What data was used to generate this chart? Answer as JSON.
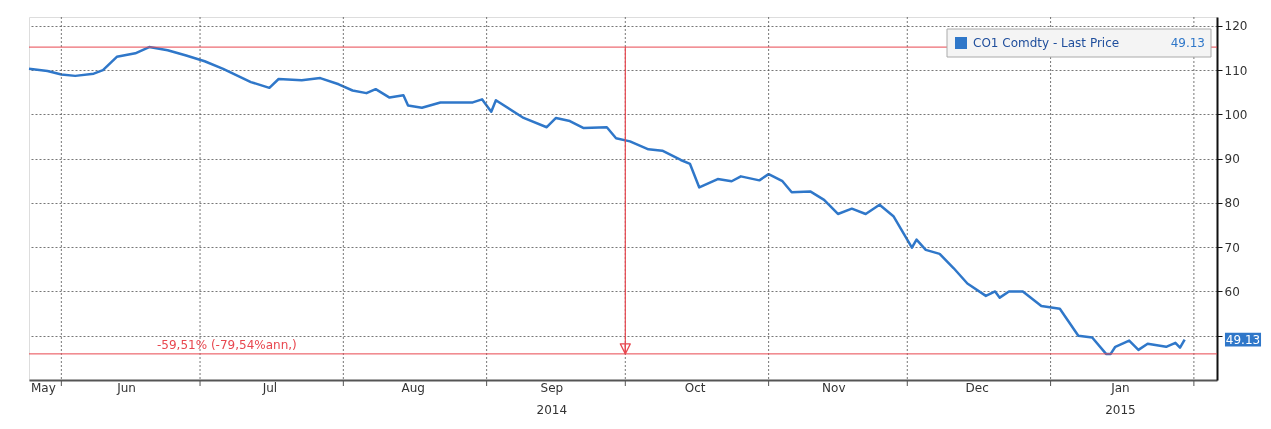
{
  "chart_data": {
    "type": "line",
    "x": [
      "2014-05-25",
      "2014-05-29",
      "2014-06-01",
      "2014-06-04",
      "2014-06-08",
      "2014-06-10",
      "2014-06-13",
      "2014-06-17",
      "2014-06-20",
      "2014-06-24",
      "2014-06-28",
      "2014-07-02",
      "2014-07-06",
      "2014-07-12",
      "2014-07-16",
      "2014-07-18",
      "2014-07-23",
      "2014-07-27",
      "2014-07-31",
      "2014-08-03",
      "2014-08-06",
      "2014-08-08",
      "2014-08-11",
      "2014-08-14",
      "2014-08-15",
      "2014-08-18",
      "2014-08-22",
      "2014-08-29",
      "2014-08-31",
      "2014-09-02",
      "2014-09-03",
      "2014-09-09",
      "2014-09-14",
      "2014-09-16",
      "2014-09-19",
      "2014-09-22",
      "2014-09-27",
      "2014-09-29",
      "2014-10-02",
      "2014-10-06",
      "2014-10-09",
      "2014-10-13",
      "2014-10-15",
      "2014-10-17",
      "2014-10-21",
      "2014-10-24",
      "2014-10-26",
      "2014-10-30",
      "2014-11-01",
      "2014-11-04",
      "2014-11-06",
      "2014-11-10",
      "2014-11-13",
      "2014-11-16",
      "2014-11-19",
      "2014-11-22",
      "2014-11-25",
      "2014-11-28",
      "2014-12-02",
      "2014-12-03",
      "2014-12-05",
      "2014-12-08",
      "2014-12-11",
      "2014-12-14",
      "2014-12-18",
      "2014-12-20",
      "2014-12-21",
      "2014-12-23",
      "2014-12-26",
      "2014-12-30",
      "2015-01-03",
      "2015-01-07",
      "2015-01-10",
      "2015-01-13",
      "2015-01-14",
      "2015-01-15",
      "2015-01-18",
      "2015-01-20",
      "2015-01-22",
      "2015-01-26",
      "2015-01-28",
      "2015-01-29",
      "2015-01-30"
    ],
    "series": [
      {
        "name": "CO1 Comdty - Last Price",
        "color": "#2f77c9",
        "values": [
          110.3,
          109.8,
          109,
          108.7,
          109.2,
          110,
          113,
          113.8,
          115.2,
          114.5,
          113.3,
          112,
          110.3,
          107.3,
          106,
          108,
          107.7,
          108.2,
          106.8,
          105.4,
          104.8,
          105.7,
          103.8,
          104.3,
          102,
          101.5,
          102.7,
          102.7,
          103.4,
          100.6,
          103.2,
          99.2,
          97.1,
          99.2,
          98.5,
          96.9,
          97.1,
          94.6,
          93.9,
          92.1,
          91.8,
          89.7,
          88.8,
          83.5,
          85.4,
          84.9,
          86,
          85.1,
          86.5,
          84.9,
          82.4,
          82.6,
          80.7,
          77.5,
          78.7,
          77.5,
          79.6,
          77,
          69.9,
          71.7,
          69.4,
          68.5,
          65.3,
          61.8,
          59,
          60,
          58.6,
          60,
          60,
          56.7,
          56.1,
          50,
          49.6,
          45.9,
          45.9,
          47.5,
          48.9,
          46.8,
          48.2,
          47.5,
          48.4,
          47.3,
          49.13
        ]
      }
    ],
    "xlim": [
      "2014-05-25",
      "2015-02-06"
    ],
    "xticks": [
      {
        "value": "2014-05-28",
        "label": "May"
      },
      {
        "value": "2014-06-01",
        "label": null
      },
      {
        "value": "2014-06-15",
        "label": "Jun"
      },
      {
        "value": "2014-07-01",
        "label": null
      },
      {
        "value": "2014-07-16",
        "label": "Jul"
      },
      {
        "value": "2014-08-01",
        "label": null
      },
      {
        "value": "2014-08-16",
        "label": "Aug"
      },
      {
        "value": "2014-09-01",
        "label": null
      },
      {
        "value": "2014-09-15",
        "label": "Sep\n2014"
      },
      {
        "value": "2014-10-01",
        "label": null
      },
      {
        "value": "2014-10-16",
        "label": "Oct"
      },
      {
        "value": "2014-11-01",
        "label": null
      },
      {
        "value": "2014-11-15",
        "label": "Nov"
      },
      {
        "value": "2014-12-01",
        "label": null
      },
      {
        "value": "2014-12-16",
        "label": "Dec"
      },
      {
        "value": "2015-01-01",
        "label": null
      },
      {
        "value": "2015-01-16",
        "label": "Jan\n2015"
      },
      {
        "value": "2015-02-01",
        "label": null
      }
    ],
    "ylim": [
      40,
      122
    ],
    "yticks": [
      {
        "value": 50,
        "label": null
      },
      60,
      70,
      80,
      90,
      100,
      110,
      120
    ],
    "grid": true,
    "legend": "top right",
    "ref_lines": [
      {
        "axis": "y",
        "value": 115.2,
        "color": "#e8474f"
      },
      {
        "axis": "y",
        "value": 45.9,
        "label": "-59,51% (-79,54%ann,)",
        "color": "#e8474f"
      },
      {
        "axis": "x",
        "value": "2014-10-01",
        "color": "#e8474f"
      }
    ],
    "annotations": [
      "49.13"
    ]
  }
}
